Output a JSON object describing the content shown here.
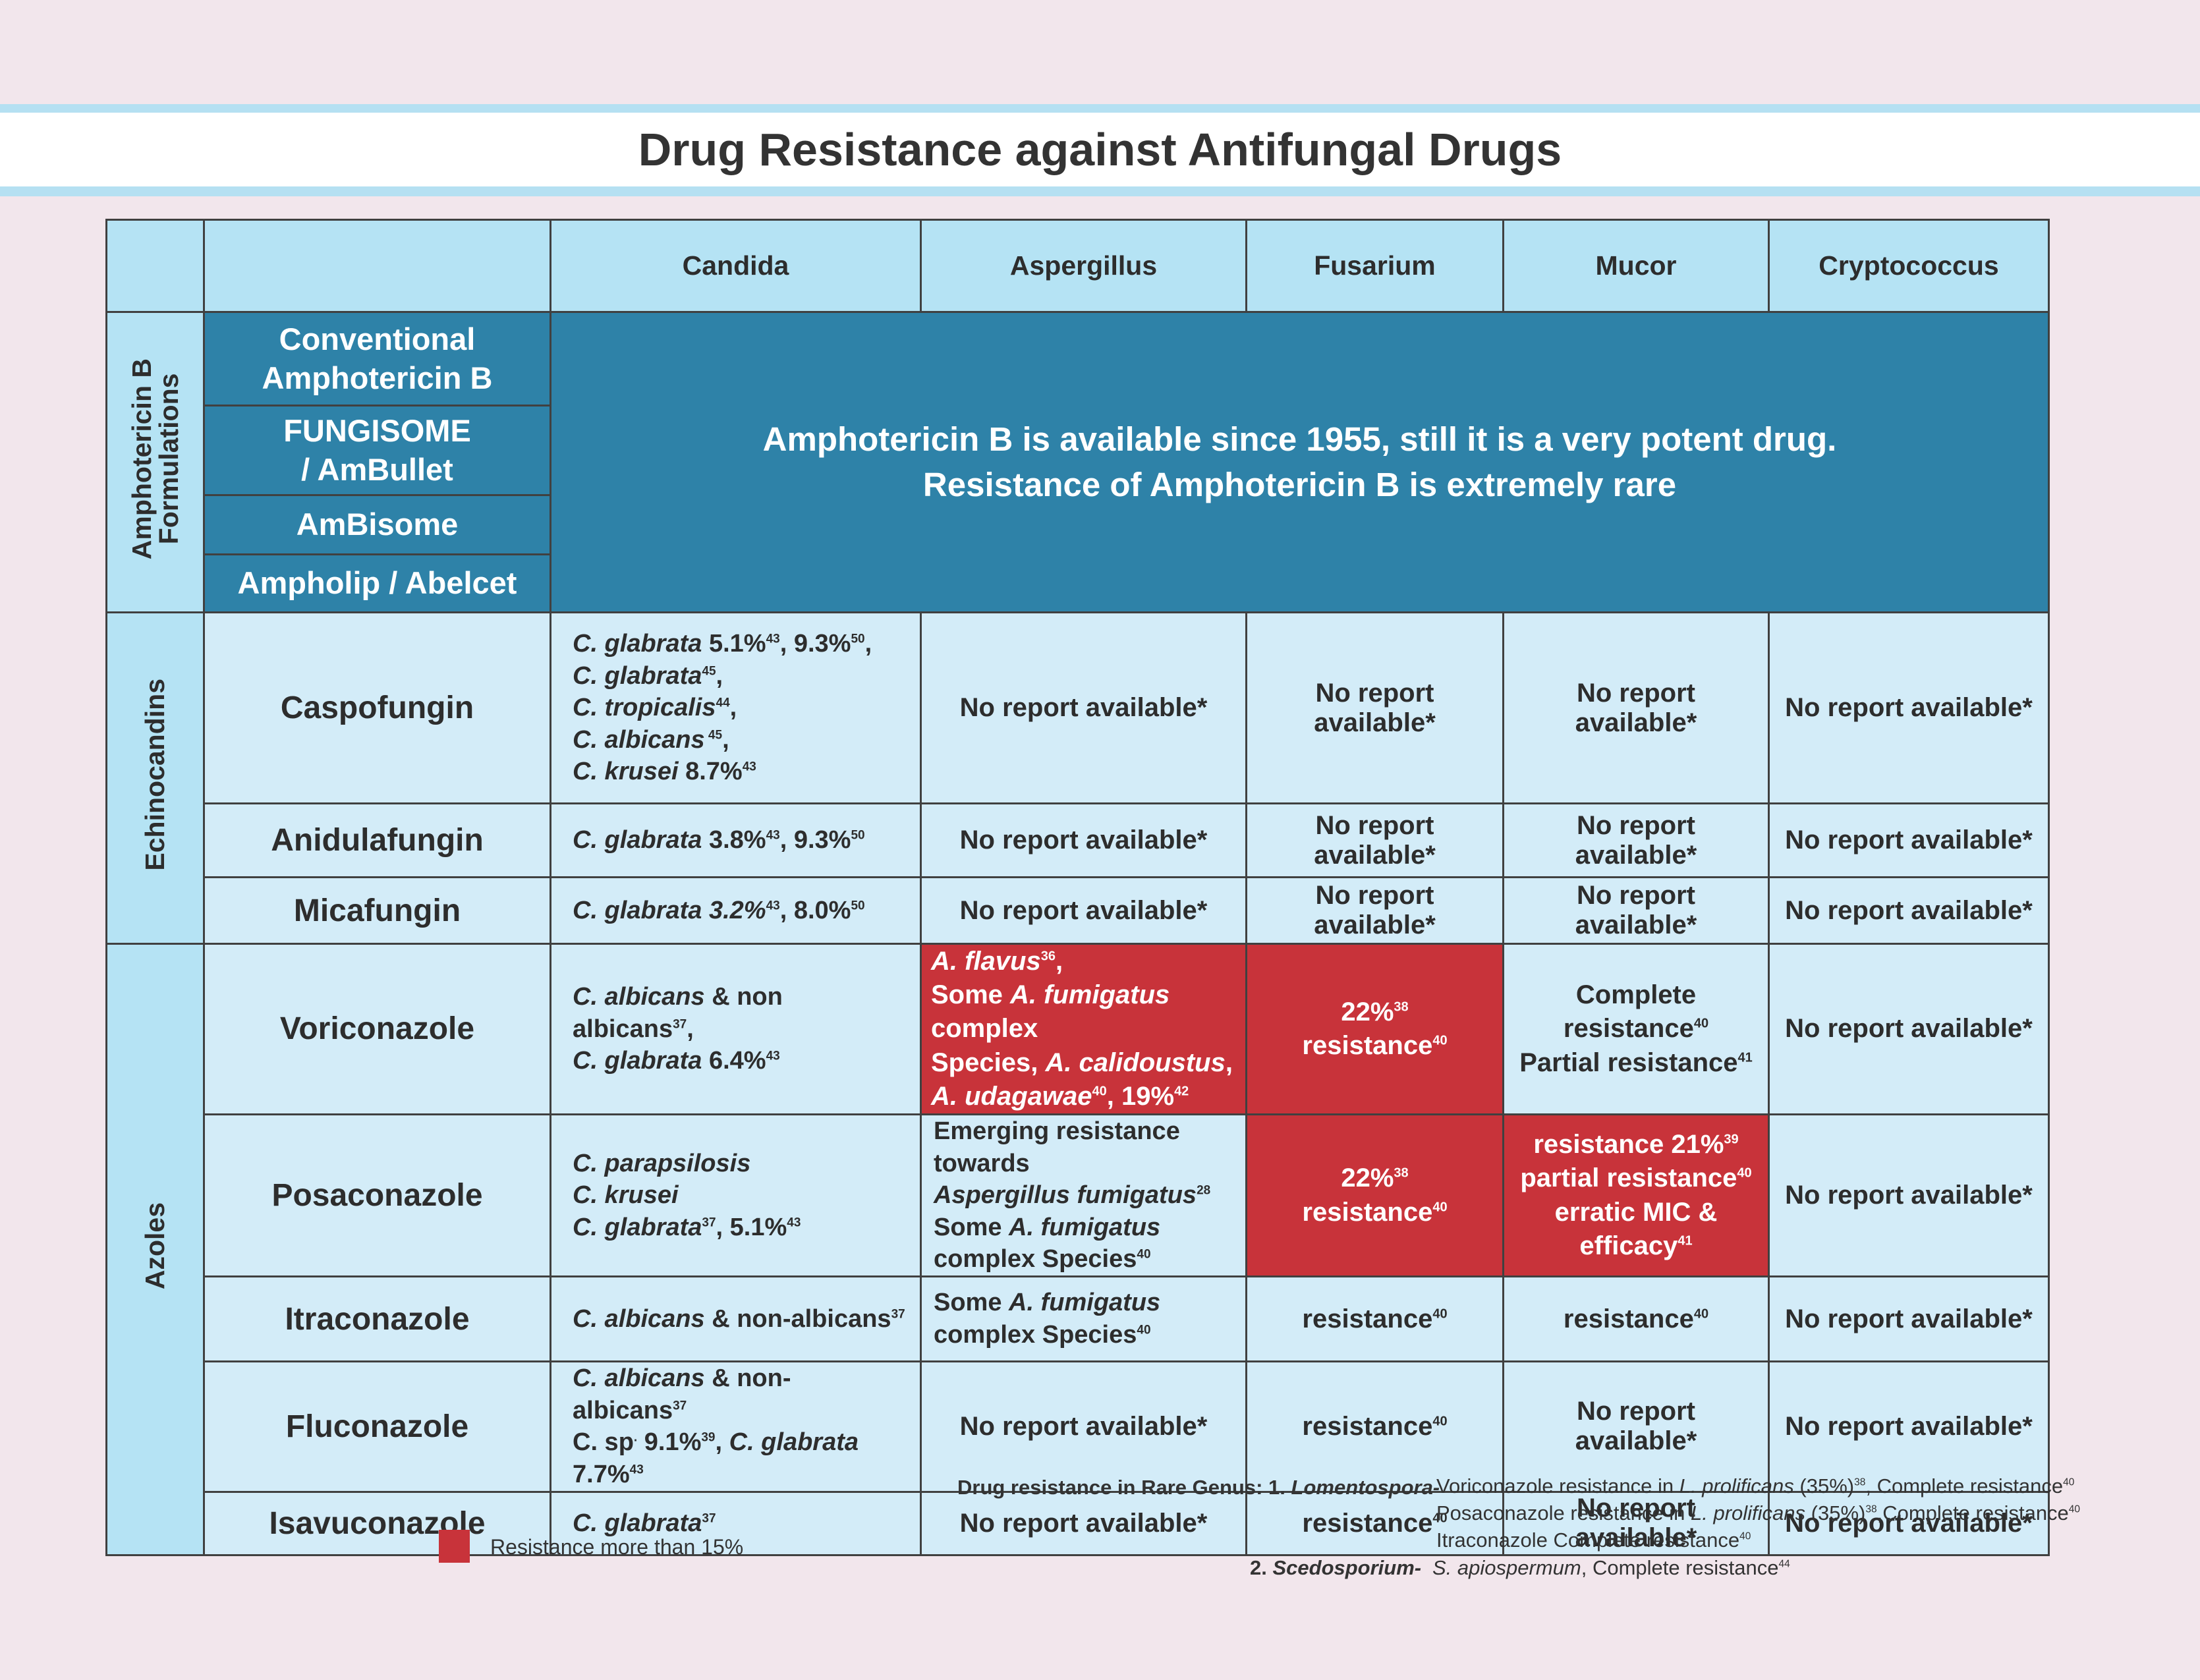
{
  "title": "Drug Resistance against Antifungal Drugs",
  "header": {
    "columns": [
      "Candida",
      "Aspergillus",
      "Fusarium",
      "Mucor",
      "Cryptococcus"
    ]
  },
  "groups": {
    "amphotericin": [
      "Amphotericin B",
      "Formulations"
    ],
    "echinocandins": "Echinocandins",
    "azoles": "Azoles"
  },
  "amphotericin": {
    "drugs": [
      [
        "Conventional",
        "Amphotericin B"
      ],
      [
        "FUNGISOME",
        "/ AmBullet"
      ],
      [
        "AmBisome"
      ],
      [
        "Ampholip / Abelcet"
      ]
    ],
    "message": [
      "Amphotericin B is available since 1955, still it is a very potent drug.",
      "Resistance of Amphotericin B is extremely rare"
    ]
  },
  "no_report": "No report available*",
  "echinocandins": {
    "caspofungin": {
      "name": "Caspofungin",
      "candida": {
        "l1_sp": "C. glabrata",
        "l1_txt": " 5.1%",
        "l1_s1": "43",
        "l1_txt2": ", 9.3%",
        "l1_s2": "50",
        "l1_end": ",",
        "l2_sp": "C. glabrata",
        "l2_s": "45",
        "l2_end": ",",
        "l3_sp": "C. tropicalis",
        "l3_s": "44",
        "l3_end": ",",
        "l4_sp": "C. albicans",
        "l4_s": " 45",
        "l4_end": ",",
        "l5_sp": "C. krusei",
        "l5_txt": " 8.7%",
        "l5_s": "43"
      }
    },
    "anidulafungin": {
      "name": "Anidulafungin",
      "candida": {
        "sp": "C. glabrata",
        "txt": " 3.8%",
        "s1": "43",
        "txt2": ", 9.3%",
        "s2": "50"
      }
    },
    "micafungin": {
      "name": "Micafungin",
      "candida": {
        "sp": "C. glabrata 3.2%",
        "s1": "43",
        "txt2": ", 8.0%",
        "s2": "50"
      }
    }
  },
  "azoles": {
    "voriconazole": {
      "name": "Voriconazole",
      "candida": {
        "l1_sp": "C. albicans",
        "l1_txt": " & non albicans",
        "l1_s": "37",
        "l1_end": ",",
        "l2_sp": "C. glabrata",
        "l2_txt": " 6.4%",
        "l2_s": "43"
      },
      "aspergillus": {
        "l1_sp": "A. flavus",
        "l1_s": "36",
        "l1_end": ",",
        "l2_a": "Some ",
        "l2_sp": "A. fumigatus",
        "l2_b": " complex",
        "l3_a": "Species, ",
        "l3_sp": "A. calidoustus",
        "l3_b": ",",
        "l4_sp": "A. udagawae",
        "l4_s": "40",
        "l4_txt": ", 19%",
        "l4_s2": "42"
      },
      "fusarium": {
        "l1": "22%",
        "l1_s": "38",
        "l2": "resistance",
        "l2_s": "40"
      },
      "mucor": {
        "l1": "Complete resistance",
        "l1_s": "40",
        "l2": "Partial resistance",
        "l2_s": "41"
      }
    },
    "posaconazole": {
      "name": "Posaconazole",
      "candida": {
        "l1": "C. parapsilosis",
        "l2": "C. krusei",
        "l3_sp": "C. glabrata",
        "l3_s": "37",
        "l3_txt": ",  5.1%",
        "l3_s2": "43"
      },
      "aspergillus": {
        "l1": "Emerging resistance towards",
        "l2": "Aspergillus fumigatus",
        "l2_s": "28",
        "l3_a": "Some ",
        "l3_sp": "A. fumigatus",
        "l4": "complex Species",
        "l4_s": "40"
      },
      "fusarium": {
        "l1": "22%",
        "l1_s": "38",
        "l2": "resistance",
        "l2_s": "40"
      },
      "mucor": {
        "l1": "resistance 21%",
        "l1_s": "39",
        "l2": "partial resistance",
        "l2_s": "40",
        "l3": "erratic MIC & efficacy",
        "l3_s": "41"
      }
    },
    "itraconazole": {
      "name": "Itraconazole",
      "candida": {
        "sp": "C. albicans",
        "txt": " & non-albicans",
        "s": "37"
      },
      "aspergillus": {
        "l1_a": "Some ",
        "l1_sp": "A. fumigatus",
        "l2": "complex Species",
        "l2_s": "40"
      },
      "fusarium": {
        "txt": "resistance",
        "s": "40"
      },
      "mucor": {
        "txt": "resistance",
        "s": "40"
      }
    },
    "fluconazole": {
      "name": "Fluconazole",
      "candida": {
        "l1_sp": "C. albicans",
        "l1_txt": " & non- albicans",
        "l1_s": "37",
        "l2_a": "C. sp",
        "l2_dot": ".",
        "l2_b": " 9.1%",
        "l2_s": "39",
        "l2_c": ",  ",
        "l2_sp": "C. glabrata",
        "l2_d": " 7.7%",
        "l2_s2": "43"
      },
      "fusarium": {
        "txt": "resistance",
        "s": "40"
      }
    },
    "isavuconazole": {
      "name": "Isavuconazole",
      "candida": {
        "sp": "C. glabrata",
        "s": "37"
      },
      "fusarium": {
        "txt": "resistance",
        "s": "40"
      }
    }
  },
  "legend": {
    "label": "Resistance more than 15%",
    "color": "#c8333a"
  },
  "rare_genus": {
    "heading": "Drug resistance in Rare Genus: 1. ",
    "genus1": "Lomentospora-",
    "g1_l1_a": "Voriconazole resistance in ",
    "g1_l1_sp": "L. prolificans",
    "g1_l1_b": " (35%)",
    "g1_l1_s1": "38",
    "g1_l1_c": ", Complete resistance",
    "g1_l1_s2": "40",
    "g1_l2_a": "Posaconazole resistance in ",
    "g1_l2_sp": "L. prolificans",
    "g1_l2_b": " (35%)",
    "g1_l2_s1": "38",
    "g1_l2_c": ",Complete resistance",
    "g1_l2_s2": "40",
    "g1_l3_a": "Itraconazole Complete resistance",
    "g1_l3_s": "40",
    "num2": "2. ",
    "genus2": "Scedosporium-",
    "g2_sp": "S. apiospermum",
    "g2_b": ", Complete resistance",
    "g2_s": "44"
  },
  "colors": {
    "background": "#f2e6ec",
    "header_light_blue": "#b5e3f4",
    "cell_light_blue": "#d3ecf8",
    "amphotericin_blue": "#2e82a8",
    "resistance_red": "#c8333a"
  }
}
